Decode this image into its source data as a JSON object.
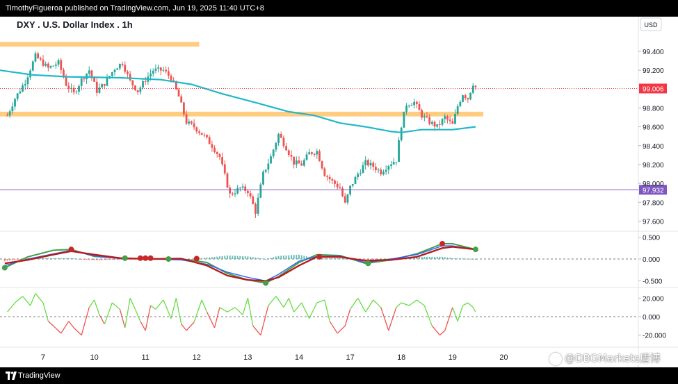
{
  "header": {
    "publisher": "TimothyFigueroa published on TradingView.com, Jun 19, 2025 11:40 UTC+8"
  },
  "footer": {
    "brand": "TradingView"
  },
  "watermark": "@DBGMarkets盾博",
  "colors": {
    "bull": "#26a69a",
    "bear": "#ef5350",
    "ema": "#20b8c8",
    "zone": "#ffcc80",
    "hline": "#7e57c2",
    "last_price_bg": "#f23645",
    "macd_line": "#2962ff",
    "signal_line": "#b71c1c",
    "macd_outer": "#43a047",
    "osc_up": "#66dd44",
    "osc_down": "#ef5350"
  },
  "chart_data": [
    {
      "type": "candlestick",
      "title": "DXY . U.S. Dollar Index . 1h",
      "currency": "USD",
      "ylim": [
        97.5,
        99.65
      ],
      "y_ticks": [
        "99.400",
        "99.200",
        "98.800",
        "98.600",
        "98.400",
        "98.200",
        "98.000",
        "97.800",
        "97.600"
      ],
      "x_ticks": [
        {
          "label": "7",
          "pos": 0.0
        },
        {
          "label": "10",
          "pos": 1.0
        },
        {
          "label": "11",
          "pos": 2.0
        },
        {
          "label": "12",
          "pos": 3.0
        },
        {
          "label": "13",
          "pos": 4.0
        },
        {
          "label": "14",
          "pos": 5.0
        },
        {
          "label": "17",
          "pos": 6.0
        },
        {
          "label": "18",
          "pos": 7.0
        },
        {
          "label": "19",
          "pos": 8.0
        },
        {
          "label": "20",
          "pos": 9.0
        }
      ],
      "price_points": [
        [
          -0.7,
          98.72
        ],
        [
          -0.55,
          98.9
        ],
        [
          -0.35,
          99.08
        ],
        [
          -0.15,
          99.35
        ],
        [
          0.1,
          99.22
        ],
        [
          0.3,
          99.28
        ],
        [
          0.45,
          99.05
        ],
        [
          0.6,
          98.95
        ],
        [
          0.75,
          99.1
        ],
        [
          0.9,
          99.2
        ],
        [
          1.05,
          98.98
        ],
        [
          1.2,
          99.06
        ],
        [
          1.4,
          99.22
        ],
        [
          1.55,
          99.28
        ],
        [
          1.7,
          99.08
        ],
        [
          1.85,
          98.98
        ],
        [
          2.0,
          99.1
        ],
        [
          2.15,
          99.2
        ],
        [
          2.35,
          99.2
        ],
        [
          2.5,
          99.12
        ],
        [
          2.65,
          98.92
        ],
        [
          2.8,
          98.65
        ],
        [
          2.95,
          98.6
        ],
        [
          3.15,
          98.5
        ],
        [
          3.3,
          98.4
        ],
        [
          3.45,
          98.28
        ],
        [
          3.65,
          97.88
        ],
        [
          3.85,
          97.95
        ],
        [
          4.0,
          97.92
        ],
        [
          4.15,
          97.7
        ],
        [
          4.3,
          98.1
        ],
        [
          4.45,
          98.28
        ],
        [
          4.6,
          98.52
        ],
        [
          4.75,
          98.38
        ],
        [
          4.9,
          98.22
        ],
        [
          5.05,
          98.2
        ],
        [
          5.2,
          98.32
        ],
        [
          5.35,
          98.34
        ],
        [
          5.5,
          98.1
        ],
        [
          5.65,
          98.02
        ],
        [
          5.8,
          97.95
        ],
        [
          5.9,
          97.78
        ],
        [
          6.0,
          97.96
        ],
        [
          6.15,
          98.1
        ],
        [
          6.3,
          98.22
        ],
        [
          6.45,
          98.18
        ],
        [
          6.6,
          98.12
        ],
        [
          6.75,
          98.2
        ],
        [
          6.9,
          98.25
        ],
        [
          7.0,
          98.62
        ],
        [
          7.1,
          98.84
        ],
        [
          7.25,
          98.86
        ],
        [
          7.4,
          98.72
        ],
        [
          7.55,
          98.65
        ],
        [
          7.7,
          98.6
        ],
        [
          7.85,
          98.7
        ],
        [
          8.0,
          98.62
        ],
        [
          8.1,
          98.82
        ],
        [
          8.2,
          98.95
        ],
        [
          8.3,
          98.9
        ],
        [
          8.4,
          99.06
        ],
        [
          8.45,
          99.02
        ]
      ],
      "ema_points": [
        [
          -0.85,
          99.2
        ],
        [
          -0.2,
          99.15
        ],
        [
          0.5,
          99.13
        ],
        [
          1.5,
          99.12
        ],
        [
          2.3,
          99.1
        ],
        [
          2.9,
          99.05
        ],
        [
          3.5,
          98.95
        ],
        [
          4.2,
          98.85
        ],
        [
          4.8,
          98.76
        ],
        [
          5.3,
          98.72
        ],
        [
          5.8,
          98.64
        ],
        [
          6.3,
          98.6
        ],
        [
          6.8,
          98.55
        ],
        [
          7.0,
          98.54
        ],
        [
          7.4,
          98.57
        ],
        [
          8.0,
          98.57
        ],
        [
          8.45,
          98.6
        ]
      ],
      "zones": [
        {
          "y1": 99.45,
          "y2": 99.5,
          "x_start": -0.85,
          "x_end": 3.05
        },
        {
          "y1": 98.71,
          "y2": 98.76,
          "x_start": -0.85,
          "x_end": 8.6
        }
      ],
      "hline": {
        "value": 97.932,
        "label": "97.932"
      },
      "last_price": {
        "value": 99.006,
        "label": "99.006"
      }
    },
    {
      "type": "line",
      "name": "macd",
      "ylim": [
        -0.62,
        0.62
      ],
      "y_ticks": [
        "0.500",
        "0.000",
        "-0.500"
      ],
      "outer": [
        [
          -0.75,
          -0.2
        ],
        [
          -0.3,
          0.05
        ],
        [
          0.2,
          0.2
        ],
        [
          0.55,
          0.22
        ],
        [
          1.0,
          0.06
        ],
        [
          1.5,
          0.02
        ],
        [
          2.1,
          0.0
        ],
        [
          2.7,
          0.0
        ],
        [
          3.2,
          -0.08
        ],
        [
          3.6,
          -0.33
        ],
        [
          4.0,
          -0.48
        ],
        [
          4.35,
          -0.55
        ],
        [
          4.6,
          -0.4
        ],
        [
          5.0,
          -0.08
        ],
        [
          5.35,
          0.1
        ],
        [
          5.8,
          0.08
        ],
        [
          6.3,
          -0.1
        ],
        [
          6.8,
          -0.02
        ],
        [
          7.3,
          0.12
        ],
        [
          7.8,
          0.35
        ],
        [
          8.0,
          0.35
        ],
        [
          8.45,
          0.22
        ]
      ],
      "macd": [
        [
          -0.75,
          -0.15
        ],
        [
          -0.3,
          0.0
        ],
        [
          0.2,
          0.12
        ],
        [
          0.55,
          0.2
        ],
        [
          1.0,
          0.07
        ],
        [
          1.5,
          0.01
        ],
        [
          2.1,
          0.0
        ],
        [
          2.7,
          -0.02
        ],
        [
          3.2,
          -0.12
        ],
        [
          3.6,
          -0.3
        ],
        [
          4.0,
          -0.42
        ],
        [
          4.35,
          -0.5
        ],
        [
          4.6,
          -0.35
        ],
        [
          5.0,
          -0.05
        ],
        [
          5.35,
          0.06
        ],
        [
          5.8,
          0.07
        ],
        [
          6.3,
          -0.08
        ],
        [
          6.8,
          0.0
        ],
        [
          7.3,
          0.1
        ],
        [
          7.8,
          0.3
        ],
        [
          8.0,
          0.3
        ],
        [
          8.45,
          0.22
        ]
      ],
      "signal": [
        [
          -0.75,
          -0.1
        ],
        [
          -0.3,
          -0.02
        ],
        [
          0.2,
          0.1
        ],
        [
          0.55,
          0.18
        ],
        [
          1.0,
          0.1
        ],
        [
          1.5,
          0.02
        ],
        [
          2.1,
          0.0
        ],
        [
          2.7,
          0.01
        ],
        [
          3.2,
          -0.15
        ],
        [
          3.6,
          -0.38
        ],
        [
          4.0,
          -0.48
        ],
        [
          4.35,
          -0.5
        ],
        [
          4.6,
          -0.42
        ],
        [
          5.0,
          -0.15
        ],
        [
          5.35,
          0.05
        ],
        [
          5.8,
          0.05
        ],
        [
          6.3,
          -0.04
        ],
        [
          6.8,
          -0.02
        ],
        [
          7.3,
          0.05
        ],
        [
          7.8,
          0.25
        ],
        [
          8.0,
          0.28
        ],
        [
          8.45,
          0.22
        ]
      ],
      "dots": [
        {
          "x": -0.75,
          "y": -0.2,
          "c": "green"
        },
        {
          "x": 0.55,
          "y": 0.22,
          "c": "red"
        },
        {
          "x": 1.6,
          "y": 0.02,
          "c": "green"
        },
        {
          "x": 1.9,
          "y": 0.02,
          "c": "red"
        },
        {
          "x": 2.0,
          "y": 0.02,
          "c": "red"
        },
        {
          "x": 2.1,
          "y": 0.02,
          "c": "red"
        },
        {
          "x": 2.45,
          "y": 0.0,
          "c": "green"
        },
        {
          "x": 3.0,
          "y": 0.01,
          "c": "red"
        },
        {
          "x": 4.35,
          "y": -0.55,
          "c": "green"
        },
        {
          "x": 5.4,
          "y": 0.05,
          "c": "red"
        },
        {
          "x": 6.35,
          "y": -0.1,
          "c": "green"
        },
        {
          "x": 7.8,
          "y": 0.35,
          "c": "red"
        },
        {
          "x": 8.45,
          "y": 0.22,
          "c": "green"
        }
      ]
    },
    {
      "type": "line",
      "name": "oscillator",
      "ylim": [
        -30,
        30
      ],
      "y_ticks": [
        "20.000",
        "0.000",
        "-20.000"
      ],
      "points": [
        [
          -0.7,
          5
        ],
        [
          -0.55,
          15
        ],
        [
          -0.4,
          22
        ],
        [
          -0.25,
          12
        ],
        [
          -0.15,
          25
        ],
        [
          0.0,
          15
        ],
        [
          0.1,
          -5
        ],
        [
          0.2,
          -10
        ],
        [
          0.35,
          -18
        ],
        [
          0.5,
          -5
        ],
        [
          0.6,
          -12
        ],
        [
          0.75,
          -20
        ],
        [
          0.9,
          10
        ],
        [
          1.0,
          18
        ],
        [
          1.1,
          2
        ],
        [
          1.2,
          -8
        ],
        [
          1.35,
          15
        ],
        [
          1.5,
          8
        ],
        [
          1.6,
          -12
        ],
        [
          1.7,
          20
        ],
        [
          1.8,
          8
        ],
        [
          1.9,
          -5
        ],
        [
          2.0,
          -15
        ],
        [
          2.1,
          12
        ],
        [
          2.2,
          8
        ],
        [
          2.35,
          18
        ],
        [
          2.5,
          -2
        ],
        [
          2.6,
          20
        ],
        [
          2.7,
          -8
        ],
        [
          2.8,
          -15
        ],
        [
          2.95,
          -6
        ],
        [
          3.1,
          18
        ],
        [
          3.2,
          5
        ],
        [
          3.35,
          -12
        ],
        [
          3.45,
          10
        ],
        [
          3.6,
          5
        ],
        [
          3.75,
          10
        ],
        [
          3.9,
          2
        ],
        [
          4.0,
          20
        ],
        [
          4.1,
          -10
        ],
        [
          4.25,
          -20
        ],
        [
          4.4,
          12
        ],
        [
          4.55,
          22
        ],
        [
          4.7,
          10
        ],
        [
          4.8,
          20
        ],
        [
          4.9,
          5
        ],
        [
          5.05,
          15
        ],
        [
          5.2,
          -2
        ],
        [
          5.35,
          15
        ],
        [
          5.5,
          18
        ],
        [
          5.6,
          -5
        ],
        [
          5.75,
          -18
        ],
        [
          5.9,
          -10
        ],
        [
          6.0,
          8
        ],
        [
          6.15,
          20
        ],
        [
          6.3,
          5
        ],
        [
          6.45,
          18
        ],
        [
          6.6,
          10
        ],
        [
          6.75,
          -15
        ],
        [
          6.9,
          10
        ],
        [
          7.0,
          15
        ],
        [
          7.15,
          12
        ],
        [
          7.3,
          18
        ],
        [
          7.45,
          12
        ],
        [
          7.6,
          -10
        ],
        [
          7.75,
          -20
        ],
        [
          7.85,
          -15
        ],
        [
          8.0,
          10
        ],
        [
          8.1,
          -5
        ],
        [
          8.2,
          12
        ],
        [
          8.3,
          15
        ],
        [
          8.4,
          10
        ],
        [
          8.45,
          5
        ]
      ]
    }
  ]
}
